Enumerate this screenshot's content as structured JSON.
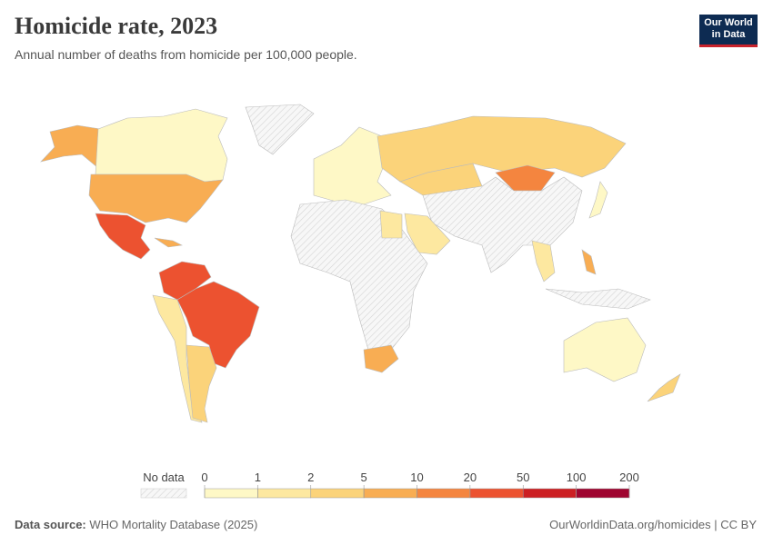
{
  "header": {
    "title": "Homicide rate, 2023",
    "subtitle": "Annual number of deaths from homicide per 100,000 people.",
    "logo": [
      "Our World",
      "in Data"
    ]
  },
  "legend": {
    "no_data": "No data",
    "breaks": [
      0,
      1,
      2,
      5,
      10,
      20,
      50,
      100,
      200
    ],
    "colors": [
      "#fef8c6",
      "#fde8a0",
      "#fbd37a",
      "#f8ad53",
      "#f4853f",
      "#ec5230",
      "#cc1f23",
      "#9f0530"
    ]
  },
  "footer": {
    "source_label": "Data source:",
    "source": "WHO Mortality Database (2025)",
    "link": "OurWorldinData.org/homicides | CC BY"
  }
}
